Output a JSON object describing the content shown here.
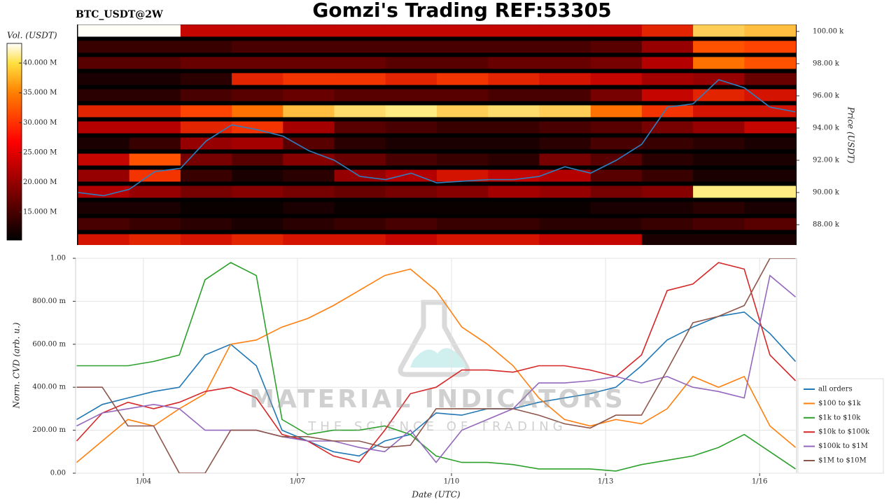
{
  "title": "Gomzi's Trading REF:53305",
  "chart_data": [
    {
      "type": "heatmap",
      "subtitle": "BTC_USDT@2W",
      "y_label": "Price (USDT)",
      "colorbar_label": "Vol. (USDT)",
      "xlim": [
        2.68,
        16.72
      ],
      "ylim": [
        86740,
        100430
      ],
      "yticks": [
        {
          "value": 88000,
          "label": "88.00 k"
        },
        {
          "value": 90000,
          "label": "90.00 k"
        },
        {
          "value": 92000,
          "label": "92.00 k"
        },
        {
          "value": 94000,
          "label": "94.00 k"
        },
        {
          "value": 96000,
          "label": "96.00 k"
        },
        {
          "value": 98000,
          "label": "98.00 k"
        },
        {
          "value": 100000,
          "label": "100.00 k"
        }
      ],
      "clim": [
        10300000,
        43300000
      ],
      "cticks": [
        {
          "value": 15000000,
          "label": "15.000 M"
        },
        {
          "value": 20000000,
          "label": "20.000 M"
        },
        {
          "value": 25000000,
          "label": "25.000 M"
        },
        {
          "value": 30000000,
          "label": "30.000 M"
        },
        {
          "value": 35000000,
          "label": "35.000 M"
        },
        {
          "value": 40000000,
          "label": "40.000 M"
        }
      ],
      "x": [
        3.2,
        4.2,
        5.2,
        6.2,
        7.2,
        8.2,
        9.2,
        10.2,
        11.2,
        12.2,
        13.2,
        14.2,
        15.2,
        16.2
      ],
      "y": [
        87000,
        88000,
        89000,
        90000,
        91000,
        92000,
        93000,
        94000,
        95000,
        96000,
        97000,
        98000,
        99000,
        100000
      ],
      "values": [
        [
          24000000.0,
          25000000.0,
          24000000.0,
          25000000.0,
          24000000.0,
          24000000.0,
          23000000.0,
          24000000.0,
          24000000.0,
          23000000.0,
          23000000.0,
          12000000.0,
          12000000.0,
          12000000.0
        ],
        [
          15000000.0,
          14000000.0,
          13000000.0,
          12000000.0,
          13000000.0,
          14000000.0,
          15000000.0,
          14000000.0,
          14000000.0,
          13000000.0,
          13000000.0,
          14000000.0,
          15000000.0,
          16000000.0
        ],
        [
          12000000.0,
          12000000.0,
          11000000.0,
          11000000.0,
          12000000.0,
          11000000.0,
          11000000.0,
          11000000.0,
          11000000.0,
          11000000.0,
          12000000.0,
          12000000.0,
          13000000.0,
          12000000.0
        ],
        [
          22000000.0,
          20000000.0,
          18000000.0,
          19000000.0,
          18000000.0,
          17000000.0,
          18000000.0,
          19000000.0,
          21000000.0,
          20000000.0,
          18000000.0,
          19000000.0,
          38000000.0,
          38000000.0
        ],
        [
          20000000.0,
          26000000.0,
          14000000.0,
          12000000.0,
          13000000.0,
          20000000.0,
          22000000.0,
          24000000.0,
          23000000.0,
          22000000.0,
          16000000.0,
          14000000.0,
          12000000.0,
          12000000.0
        ],
        [
          23000000.0,
          28000000.0,
          18000000.0,
          16000000.0,
          19000000.0,
          17000000.0,
          15000000.0,
          14000000.0,
          13000000.0,
          18000000.0,
          16000000.0,
          13000000.0,
          12000000.0,
          12000000.0
        ],
        [
          12000000.0,
          14000000.0,
          20000000.0,
          21000000.0,
          16000000.0,
          13000000.0,
          12000000.0,
          12000000.0,
          12000000.0,
          13000000.0,
          15000000.0,
          14000000.0,
          13000000.0,
          12000000.0
        ],
        [
          22000000.0,
          22000000.0,
          25000000.0,
          26000000.0,
          21000000.0,
          16000000.0,
          15000000.0,
          14000000.0,
          14000000.0,
          15000000.0,
          16000000.0,
          18000000.0,
          20000000.0,
          23000000.0
        ],
        [
          25000000.0,
          25000000.0,
          27000000.0,
          30000000.0,
          35000000.0,
          37000000.0,
          38000000.0,
          36000000.0,
          37000000.0,
          36000000.0,
          30000000.0,
          26000000.0,
          24000000.0,
          24000000.0
        ],
        [
          13000000.0,
          13000000.0,
          15000000.0,
          16000000.0,
          17000000.0,
          16000000.0,
          16000000.0,
          16000000.0,
          15000000.0,
          15000000.0,
          18000000.0,
          23000000.0,
          25000000.0,
          24000000.0
        ],
        [
          12000000.0,
          12000000.0,
          13000000.0,
          25000000.0,
          26000000.0,
          26000000.0,
          25000000.0,
          26000000.0,
          25000000.0,
          24000000.0,
          23000000.0,
          21000000.0,
          20000000.0,
          17000000.0
        ],
        [
          16000000.0,
          16000000.0,
          17000000.0,
          17000000.0,
          17000000.0,
          17000000.0,
          16000000.0,
          16000000.0,
          17000000.0,
          17000000.0,
          18000000.0,
          22000000.0,
          30000000.0,
          28000000.0
        ],
        [
          14000000.0,
          14000000.0,
          14000000.0,
          15000000.0,
          15000000.0,
          15000000.0,
          15000000.0,
          15000000.0,
          15000000.0,
          15000000.0,
          16000000.0,
          20000000.0,
          28000000.0,
          27000000.0
        ],
        [
          43000000.0,
          43000000.0,
          23000000.0,
          23000000.0,
          23000000.0,
          23000000.0,
          23000000.0,
          23000000.0,
          23000000.0,
          23000000.0,
          23000000.0,
          25000000.0,
          36000000.0,
          35000000.0
        ]
      ],
      "series": [
        {
          "color": "#2f7fc1",
          "x": [
            2.7,
            3.2,
            3.7,
            4.2,
            4.7,
            5.2,
            5.7,
            6.2,
            6.7,
            7.2,
            7.7,
            8.2,
            8.7,
            9.2,
            9.7,
            10.2,
            10.7,
            11.2,
            11.7,
            12.2,
            12.7,
            13.2,
            13.7,
            14.2,
            14.7,
            15.2,
            15.7,
            16.2,
            16.7
          ],
          "values": [
            90000,
            89800,
            90200,
            91300,
            91500,
            93200,
            94200,
            93900,
            93500,
            92600,
            92000,
            91000,
            90800,
            91200,
            90600,
            90700,
            90800,
            90800,
            91000,
            91600,
            91200,
            92000,
            93000,
            95300,
            95500,
            97000,
            96500,
            95300,
            95000
          ]
        }
      ]
    },
    {
      "type": "line",
      "x_label": "Date (UTC)",
      "y_label": "Norm. CVD (arb. u.)",
      "xlim": [
        2.68,
        16.72
      ],
      "ylim": [
        0,
        1
      ],
      "xticks": [
        {
          "value": 4,
          "label": "1/04"
        },
        {
          "value": 7,
          "label": "1/07"
        },
        {
          "value": 10,
          "label": "1/10"
        },
        {
          "value": 13,
          "label": "1/13"
        },
        {
          "value": 16,
          "label": "1/16"
        }
      ],
      "yticks": [
        {
          "value": 0,
          "label": "0.00"
        },
        {
          "value": 0.2,
          "label": "200.00 m"
        },
        {
          "value": 0.4,
          "label": "400.00 m"
        },
        {
          "value": 0.6,
          "label": "600.00 m"
        },
        {
          "value": 0.8,
          "label": "800.00 m"
        },
        {
          "value": 1,
          "label": "1.00"
        }
      ],
      "grid": true,
      "legend": "outside right",
      "watermark": [
        "MATERIAL INDICATORS",
        "THE SCIENCE OF TRADING"
      ],
      "x": [
        2.7,
        3.2,
        3.7,
        4.2,
        4.7,
        5.2,
        5.7,
        6.2,
        6.7,
        7.2,
        7.7,
        8.2,
        8.7,
        9.2,
        9.7,
        10.2,
        10.7,
        11.2,
        11.7,
        12.2,
        12.7,
        13.2,
        13.7,
        14.2,
        14.7,
        15.2,
        15.7,
        16.2,
        16.7
      ],
      "series": [
        {
          "name": "all orders",
          "color": "#1f77b4",
          "values": [
            0.25,
            0.32,
            0.35,
            0.38,
            0.4,
            0.55,
            0.6,
            0.5,
            0.2,
            0.15,
            0.1,
            0.08,
            0.15,
            0.18,
            0.28,
            0.27,
            0.3,
            0.3,
            0.33,
            0.35,
            0.37,
            0.4,
            0.5,
            0.62,
            0.68,
            0.73,
            0.75,
            0.65,
            0.52
          ]
        },
        {
          "name": "$100 to $1k",
          "color": "#ff7f0e",
          "values": [
            0.05,
            0.15,
            0.25,
            0.22,
            0.3,
            0.37,
            0.6,
            0.62,
            0.68,
            0.72,
            0.78,
            0.85,
            0.92,
            0.95,
            0.85,
            0.68,
            0.6,
            0.5,
            0.35,
            0.25,
            0.22,
            0.25,
            0.23,
            0.3,
            0.45,
            0.4,
            0.45,
            0.22,
            0.12
          ]
        },
        {
          "name": "$1k to $10k",
          "color": "#2ca02c",
          "values": [
            0.5,
            0.5,
            0.5,
            0.52,
            0.55,
            0.9,
            0.98,
            0.92,
            0.25,
            0.18,
            0.2,
            0.2,
            0.22,
            0.18,
            0.08,
            0.05,
            0.05,
            0.04,
            0.02,
            0.02,
            0.02,
            0.01,
            0.04,
            0.06,
            0.08,
            0.12,
            0.18,
            0.1,
            0.02
          ]
        },
        {
          "name": "$10k to $100k",
          "color": "#d62728",
          "values": [
            0.15,
            0.28,
            0.33,
            0.3,
            0.33,
            0.38,
            0.4,
            0.35,
            0.18,
            0.15,
            0.08,
            0.05,
            0.2,
            0.37,
            0.4,
            0.48,
            0.48,
            0.47,
            0.5,
            0.5,
            0.48,
            0.45,
            0.55,
            0.85,
            0.88,
            0.98,
            0.95,
            0.55,
            0.43
          ]
        },
        {
          "name": "$100k to $1M",
          "color": "#9467bd",
          "values": [
            0.22,
            0.28,
            0.3,
            0.32,
            0.3,
            0.2,
            0.2,
            0.2,
            0.17,
            0.15,
            0.15,
            0.12,
            0.1,
            0.2,
            0.05,
            0.2,
            0.25,
            0.3,
            0.42,
            0.42,
            0.43,
            0.45,
            0.42,
            0.45,
            0.4,
            0.38,
            0.35,
            0.92,
            0.82
          ]
        },
        {
          "name": "$1M to $10M",
          "color": "#8c564b",
          "values": [
            0.4,
            0.4,
            0.22,
            0.22,
            0.0,
            0.0,
            0.2,
            0.2,
            0.17,
            0.17,
            0.15,
            0.15,
            0.12,
            0.13,
            0.3,
            0.3,
            0.3,
            0.3,
            0.27,
            0.23,
            0.21,
            0.27,
            0.27,
            0.48,
            0.7,
            0.73,
            0.78,
            1.0,
            1.0
          ]
        }
      ]
    }
  ]
}
